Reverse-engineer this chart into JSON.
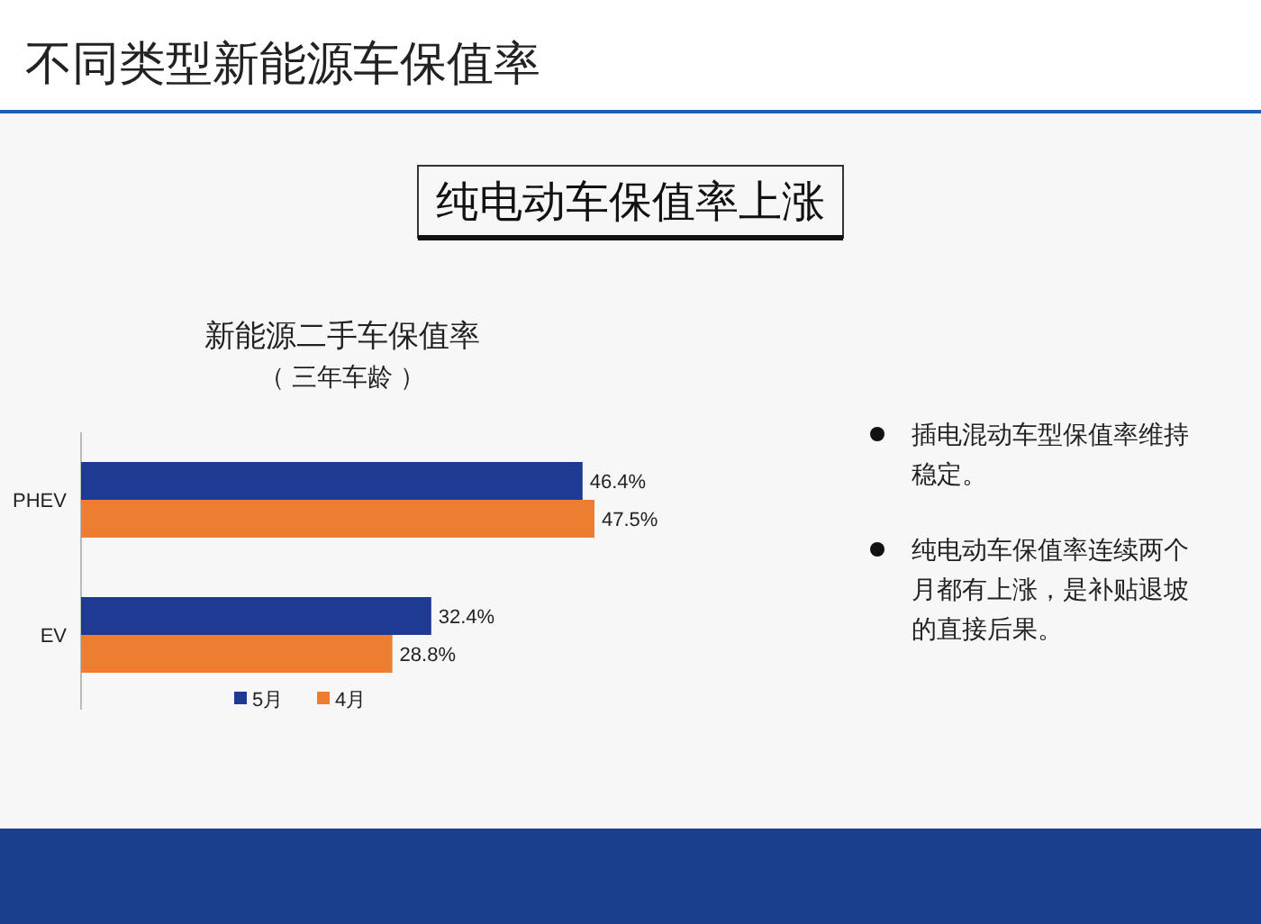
{
  "chart_data": {
    "type": "bar",
    "orientation": "horizontal",
    "title": "新能源二手车保值率",
    "subtitle": "（ 三年车龄 ）",
    "categories": [
      "PHEV",
      "EV"
    ],
    "series": [
      {
        "name": "5月",
        "color": "#1f3a93",
        "values": [
          46.4,
          32.4
        ],
        "value_labels": [
          "46.4%",
          "32.4%"
        ]
      },
      {
        "name": "4月",
        "color": "#ed7d31",
        "values": [
          47.5,
          28.8
        ],
        "value_labels": [
          "47.5%",
          "28.8%"
        ]
      }
    ],
    "legend": "bottom",
    "annotations": [
      "不同类型新能源车保值率",
      "纯电动车保值率上涨",
      "插电混动车型保值率维持稳定。",
      "纯电动车保值率连续两个月都有上涨，是补贴退坡的直接后果。"
    ]
  }
}
